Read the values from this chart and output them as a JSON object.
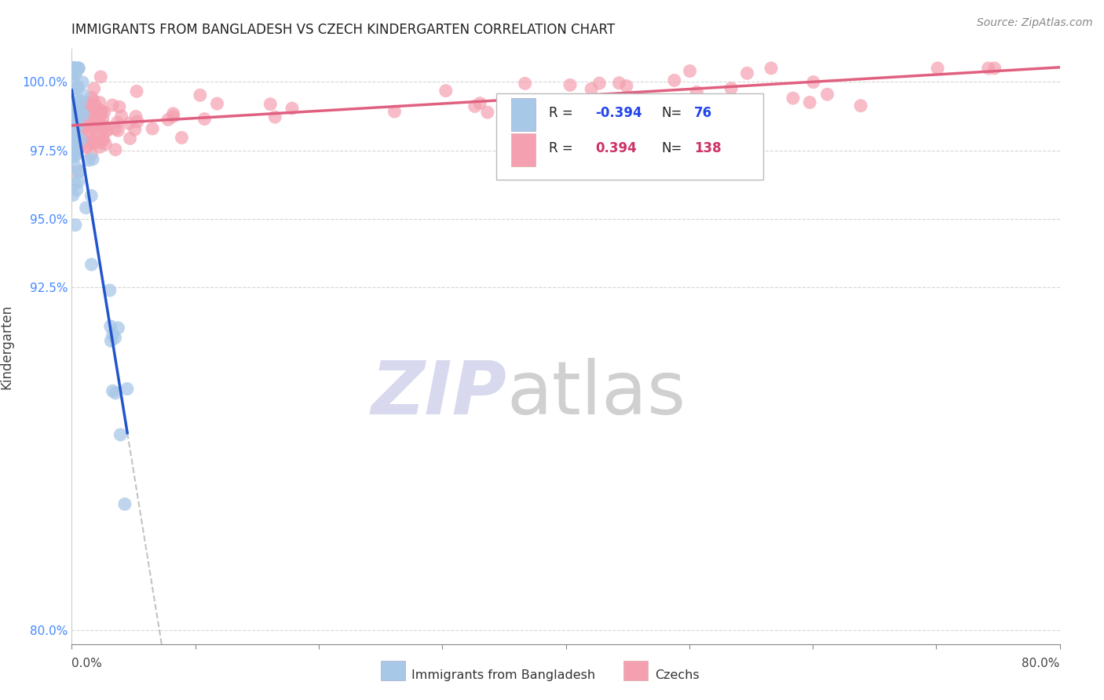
{
  "title": "IMMIGRANTS FROM BANGLADESH VS CZECH KINDERGARTEN CORRELATION CHART",
  "source": "Source: ZipAtlas.com",
  "ylabel": "Kindergarten",
  "y_ticks": [
    80.0,
    92.5,
    95.0,
    97.5,
    100.0
  ],
  "y_tick_labels": [
    "80.0%",
    "92.5%",
    "95.0%",
    "97.5%",
    "100.0%"
  ],
  "legend_blue_r": "-0.394",
  "legend_blue_n": "76",
  "legend_pink_r": "0.394",
  "legend_pink_n": "138",
  "legend_blue_label": "Immigrants from Bangladesh",
  "legend_pink_label": "Czechs",
  "blue_color": "#a8c8e8",
  "pink_color": "#f4a0b0",
  "blue_line_color": "#2255cc",
  "pink_line_color": "#e06080",
  "blue_dot_edge": "#7aaad0",
  "pink_dot_edge": "#e890a8",
  "x_min": 0.0,
  "x_max": 80.0,
  "y_min": 79.5,
  "y_max": 101.2,
  "watermark_zip_color": "#d8d8ee",
  "watermark_atlas_color": "#d0d0d0",
  "title_fontsize": 12,
  "source_fontsize": 10,
  "tick_fontsize": 11,
  "ylabel_fontsize": 12
}
